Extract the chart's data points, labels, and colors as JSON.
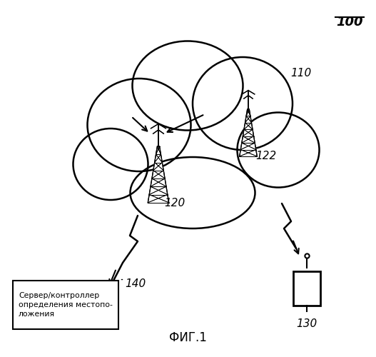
{
  "background_color": "#ffffff",
  "figure_label": "100",
  "caption": "ФИГ.1",
  "cloud_label": "110",
  "tower1_label": "120",
  "tower2_label": "122",
  "device_label": "130",
  "server_label": "140",
  "server_text": "Сервер/контроллер\nопределения местопо-\nложения"
}
